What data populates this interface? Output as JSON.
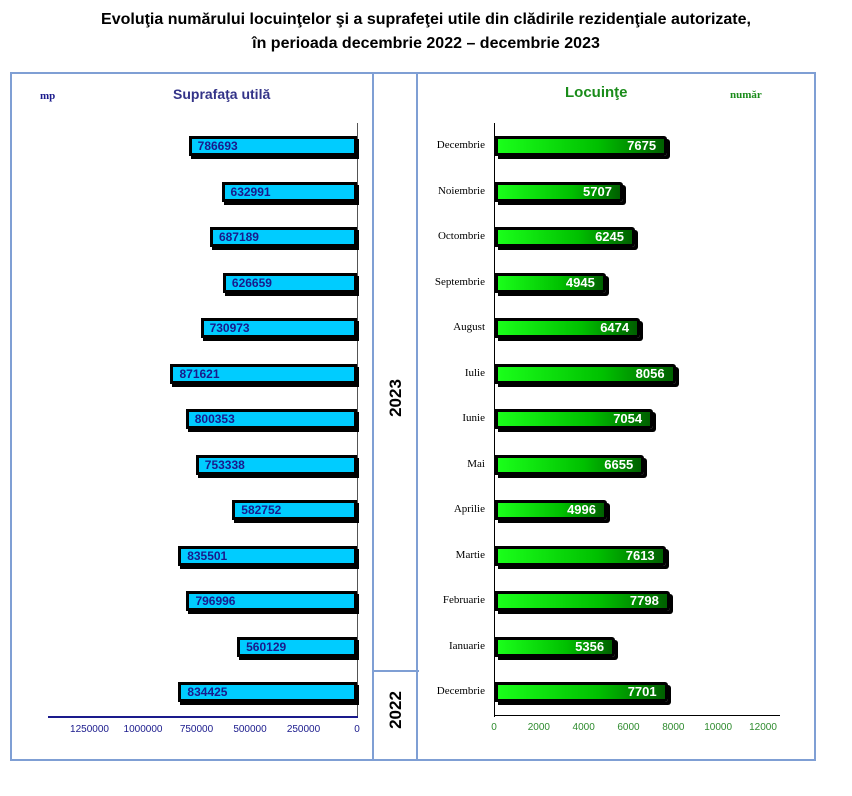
{
  "title_line1": "Evoluţia numărului locuinţelor şi a suprafeţei utile din clădirile rezidenţiale autorizate,",
  "title_line2": "în perioada decembrie 2022 – decembrie 2023",
  "years": {
    "y2023": "2023",
    "y2022": "2022"
  },
  "colors": {
    "area_bar": "#00ccff",
    "dwelling_bar": "#00ff00",
    "area_text": "#1a1a8c",
    "dwelling_text": "#1a8c1a",
    "frame": "#7f9fd4"
  },
  "chart_data": [
    {
      "type": "bar",
      "orientation": "horizontal",
      "title": "Suprafaţa utilă",
      "unit_label": "mp",
      "categories": [
        "Decembrie",
        "Noiembrie",
        "Octombrie",
        "Septembrie",
        "August",
        "Iulie",
        "Iunie",
        "Mai",
        "Aprilie",
        "Martie",
        "Februarie",
        "Ianuarie",
        "Decembrie"
      ],
      "values": [
        786693,
        632991,
        687189,
        626659,
        730973,
        871621,
        800353,
        753338,
        582752,
        835501,
        796996,
        560129,
        834425
      ],
      "xticks": [
        "1250000",
        "1000000",
        "750000",
        "500000",
        "250000",
        "0"
      ],
      "xtick_values": [
        1250000,
        1000000,
        750000,
        500000,
        250000,
        0
      ],
      "xlim": [
        0,
        1450000
      ],
      "reversed_x": true,
      "grid": false
    },
    {
      "type": "bar",
      "orientation": "horizontal",
      "title": "Locuinţe",
      "unit_label": "număr",
      "categories": [
        "Decembrie",
        "Noiembrie",
        "Octombrie",
        "Septembrie",
        "August",
        "Iulie",
        "Iunie",
        "Mai",
        "Aprilie",
        "Martie",
        "Februarie",
        "Ianuarie",
        "Decembrie"
      ],
      "values": [
        7675,
        5707,
        6245,
        4945,
        6474,
        8056,
        7054,
        6655,
        4996,
        7613,
        7798,
        5356,
        7701
      ],
      "xticks": [
        "0",
        "2000",
        "4000",
        "6000",
        "8000",
        "10000",
        "12000"
      ],
      "xtick_values": [
        0,
        2000,
        4000,
        6000,
        8000,
        10000,
        12000
      ],
      "xlim": [
        0,
        13000
      ],
      "grid": false
    }
  ]
}
